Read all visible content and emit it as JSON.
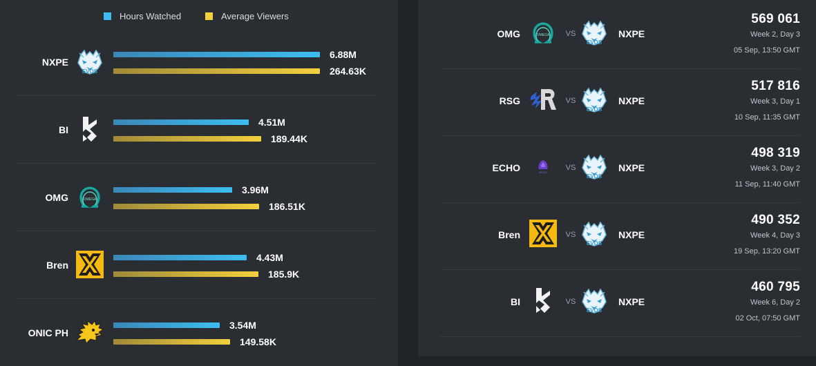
{
  "legend": {
    "hours_label": "Hours Watched",
    "avg_label": "Average Viewers",
    "hours_color": "#3dbdf0",
    "avg_color": "#f3d03c"
  },
  "teams": [
    {
      "name": "NXPE",
      "logo": "nxpe-wolf-logo",
      "hours": "6.88M",
      "avg": "264.63K",
      "hours_value": 6.88,
      "avg_value": 264.63
    },
    {
      "name": "BI",
      "logo": "bi-logo",
      "hours": "4.51M",
      "avg": "189.44K",
      "hours_value": 4.51,
      "avg_value": 189.44
    },
    {
      "name": "OMG",
      "logo": "omg-omega-logo",
      "hours": "3.96M",
      "avg": "186.51K",
      "hours_value": 3.96,
      "avg_value": 186.51
    },
    {
      "name": "Bren",
      "logo": "bren-logo",
      "hours": "4.43M",
      "avg": "185.9K",
      "hours_value": 4.43,
      "avg_value": 185.9
    },
    {
      "name": "ONIC PH",
      "logo": "onic-hedgehog-logo",
      "hours": "3.54M",
      "avg": "149.58K",
      "hours_value": 3.54,
      "avg_value": 149.58
    }
  ],
  "matches": [
    {
      "team1": "OMG",
      "team1_logo": "omg-omega-logo",
      "vs": "VS",
      "team2": "NXPE",
      "team2_logo": "nxpe-wolf-logo",
      "viewers": "569 061",
      "week": "Week 2, Day 3",
      "date": "05 Sep, 13:50 GMT"
    },
    {
      "team1": "RSG",
      "team1_logo": "rsg-logo",
      "vs": "VS",
      "team2": "NXPE",
      "team2_logo": "nxpe-wolf-logo",
      "viewers": "517 816",
      "week": "Week 3, Day 1",
      "date": "10 Sep, 11:35 GMT"
    },
    {
      "team1": "ECHO",
      "team1_logo": "echo-logo",
      "vs": "VS",
      "team2": "NXPE",
      "team2_logo": "nxpe-wolf-logo",
      "viewers": "498 319",
      "week": "Week 3, Day 2",
      "date": "11 Sep, 11:40 GMT"
    },
    {
      "team1": "Bren",
      "team1_logo": "bren-logo",
      "vs": "VS",
      "team2": "NXPE",
      "team2_logo": "nxpe-wolf-logo",
      "viewers": "490 352",
      "week": "Week 4, Day 3",
      "date": "19 Sep, 13:20 GMT"
    },
    {
      "team1": "BI",
      "team1_logo": "bi-logo",
      "vs": "VS",
      "team2": "NXPE",
      "team2_logo": "nxpe-wolf-logo",
      "viewers": "460 795",
      "week": "Week 6, Day 2",
      "date": "02 Oct, 07:50 GMT"
    }
  ]
}
